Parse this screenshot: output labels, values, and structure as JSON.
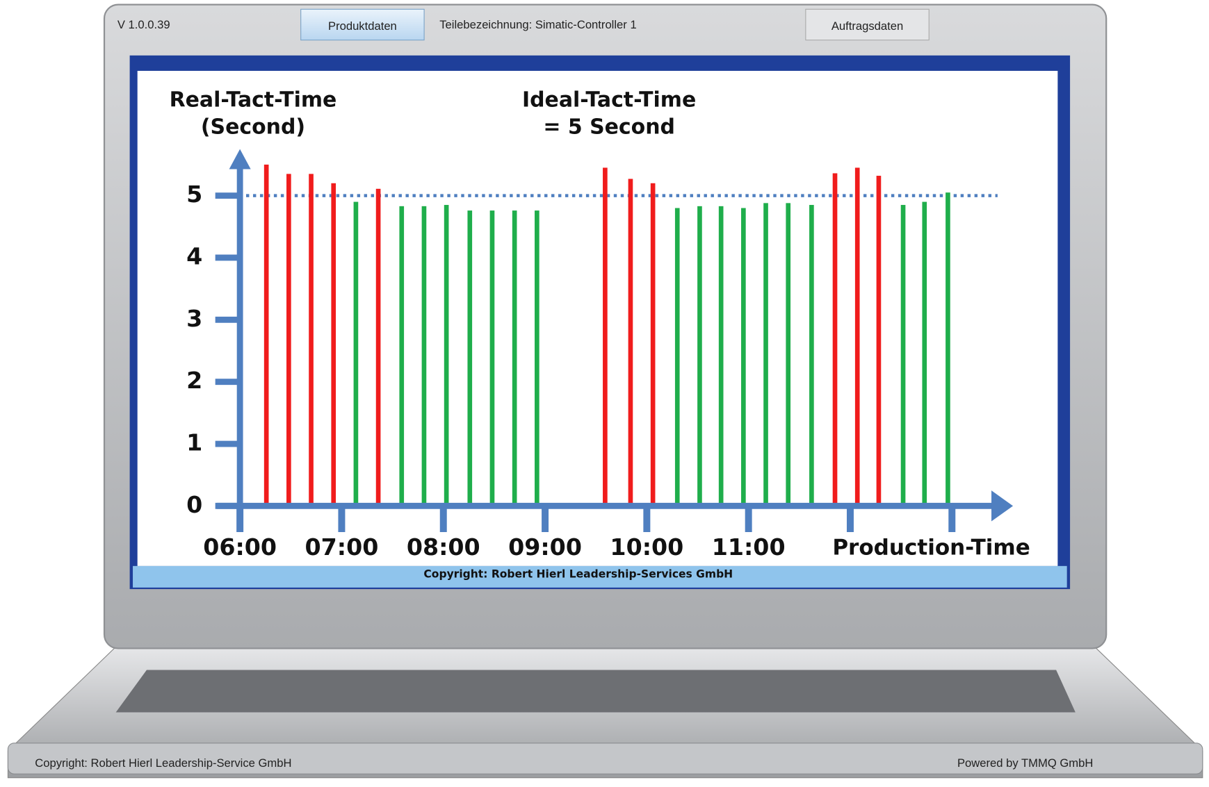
{
  "ui": {
    "version": "V 1.0.0.39",
    "button_left": "Produktdaten",
    "part_label": "Teilebezeichnung: Simatic-Controller 1",
    "button_right": "Auftragsdaten",
    "screen_copyright": "Copyright: Robert Hierl Leadership-Services GmbH",
    "footer_left": "Copyright: Robert Hierl Leadership-Service GmbH",
    "footer_right": "Powered by TMMQ GmbH"
  },
  "chart_data": {
    "type": "bar",
    "ylabel": [
      "Real-Tact-Time",
      "(Second)"
    ],
    "annotation": [
      "Ideal-Tact-Time",
      "= 5 Second"
    ],
    "xlabel": "Production-Time",
    "x": [
      6.26,
      6.48,
      6.7,
      6.92,
      7.14,
      7.36,
      7.59,
      7.81,
      8.03,
      8.26,
      8.48,
      8.7,
      8.92,
      9.59,
      9.84,
      10.06,
      10.3,
      10.52,
      10.73,
      10.95,
      11.17,
      11.39,
      11.62,
      11.85,
      12.07,
      12.28,
      12.52,
      12.73,
      12.96
    ],
    "values": [
      5.5,
      5.35,
      5.35,
      5.2,
      4.9,
      5.11,
      4.83,
      4.83,
      4.85,
      4.76,
      4.76,
      4.76,
      4.76,
      5.45,
      5.27,
      5.2,
      4.8,
      4.83,
      4.83,
      4.8,
      4.88,
      4.88,
      4.85,
      5.36,
      5.45,
      5.32,
      4.85,
      4.9,
      5.05
    ],
    "colors": [
      "#f01c1c",
      "#f01c1c",
      "#f01c1c",
      "#f01c1c",
      "#1fae4b",
      "#f01c1c",
      "#1fae4b",
      "#1fae4b",
      "#1fae4b",
      "#1fae4b",
      "#1fae4b",
      "#1fae4b",
      "#1fae4b",
      "#f01c1c",
      "#f01c1c",
      "#f01c1c",
      "#1fae4b",
      "#1fae4b",
      "#1fae4b",
      "#1fae4b",
      "#1fae4b",
      "#1fae4b",
      "#1fae4b",
      "#f01c1c",
      "#f01c1c",
      "#f01c1c",
      "#1fae4b",
      "#1fae4b",
      "#1fae4b"
    ],
    "reference_line": 5,
    "axis_color": "#4f7fc0",
    "xlim": [
      6,
      13.6
    ],
    "ylim": [
      0,
      5.75
    ],
    "xticks": [
      {
        "value": 6,
        "label": "06:00"
      },
      {
        "value": 7,
        "label": "07:00"
      },
      {
        "value": 8,
        "label": "08:00"
      },
      {
        "value": 9,
        "label": "09:00"
      },
      {
        "value": 10,
        "label": "10:00"
      },
      {
        "value": 11,
        "label": "11:00"
      },
      {
        "value": 12,
        "label": null
      },
      {
        "value": 13,
        "label": null
      }
    ],
    "yticks": [
      0,
      1,
      2,
      3,
      4,
      5
    ]
  }
}
